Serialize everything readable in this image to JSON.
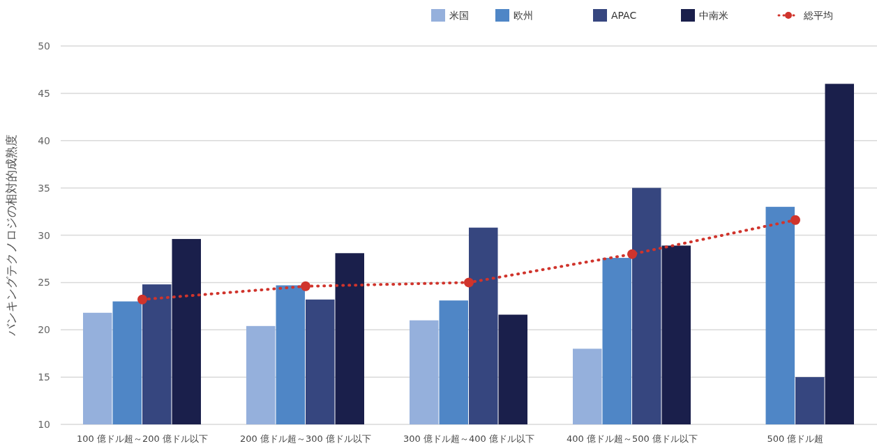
{
  "chart_data": {
    "type": "bar",
    "ylabel": "バンキングテクノロジの相対的成熟度",
    "categories": [
      "100 億ドル超～200 億ドル以下",
      "200 億ドル超～300 億ドル以下",
      "300 億ドル超～400 億ドル以下",
      "400 億ドル超～500 億ドル以下",
      "500 億ドル超"
    ],
    "series": [
      {
        "name": "米国",
        "color": "#95b0dc",
        "values": [
          21.8,
          20.4,
          21.0,
          18.0,
          null
        ]
      },
      {
        "name": "欧州",
        "color": "#4f86c6",
        "values": [
          23.0,
          24.7,
          23.1,
          27.6,
          33.0
        ]
      },
      {
        "name": "APAC",
        "color": "#36467f",
        "values": [
          24.8,
          23.2,
          30.8,
          35.0,
          15.0
        ]
      },
      {
        "name": "中南米",
        "color": "#1a1f4b",
        "values": [
          29.6,
          28.1,
          21.6,
          28.9,
          46.0
        ]
      },
      {
        "name": "総平均",
        "type": "line",
        "color": "#d0342c",
        "marker": "circle",
        "line_style": "dotted",
        "values": [
          23.2,
          24.6,
          25.0,
          28.0,
          31.6
        ]
      }
    ],
    "ylim": [
      10,
      50
    ],
    "yticks": [
      10,
      15,
      20,
      25,
      30,
      35,
      40,
      45,
      50
    ],
    "grid": "y",
    "legend": "top"
  }
}
